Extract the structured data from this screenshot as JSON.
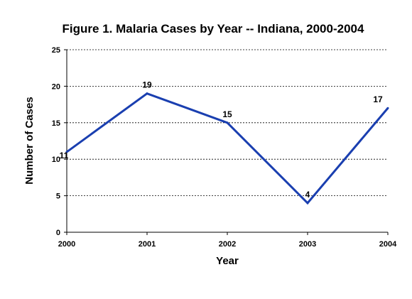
{
  "chart_data": {
    "type": "line",
    "title": "Figure 1. Malaria Cases by Year -- Indiana, 2000-2004",
    "xlabel": "Year",
    "ylabel": "Number of Cases",
    "categories": [
      "2000",
      "2001",
      "2002",
      "2003",
      "2004"
    ],
    "series": [
      {
        "values": [
          11,
          19,
          15,
          4,
          17
        ]
      }
    ],
    "data_labels": [
      "11",
      "19",
      "15",
      "4",
      "17"
    ],
    "ylim": [
      0,
      25
    ],
    "yticks": [
      "0",
      "5",
      "10",
      "15",
      "20",
      "25"
    ],
    "grid": "horizontal dashed",
    "line_color": "#1a3fb0"
  }
}
